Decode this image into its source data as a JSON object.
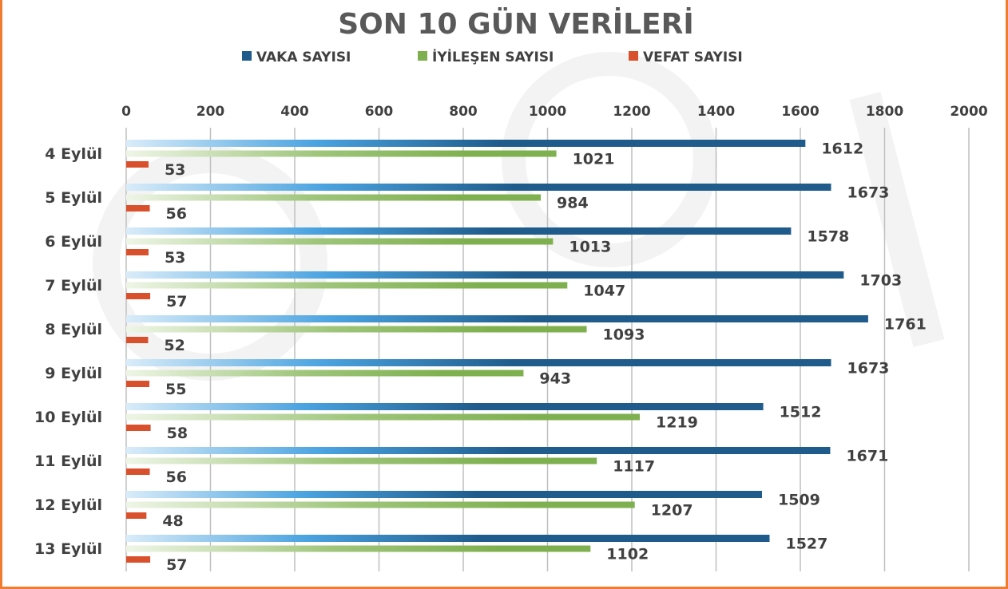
{
  "chart_data": {
    "type": "bar",
    "orientation": "horizontal",
    "title": "SON 10 GÜN VERİLERİ",
    "categories": [
      "4 Eylül",
      "5 Eylül",
      "6 Eylül",
      "7 Eylül",
      "8 Eylül",
      "9 Eylül",
      "10 Eylül",
      "11 Eylül",
      "12 Eylül",
      "13 Eylül"
    ],
    "series": [
      {
        "name": "VAKA SAYISI",
        "color": "#1f5c8c",
        "values": [
          1612,
          1673,
          1578,
          1703,
          1761,
          1673,
          1512,
          1671,
          1509,
          1527
        ]
      },
      {
        "name": "İYİLEŞEN SAYISI",
        "color": "#7fb04f",
        "values": [
          1021,
          984,
          1013,
          1047,
          1093,
          943,
          1219,
          1117,
          1207,
          1102
        ]
      },
      {
        "name": "VEFAT SAYISI",
        "color": "#d9512c",
        "values": [
          53,
          56,
          53,
          57,
          52,
          55,
          58,
          56,
          48,
          57
        ]
      }
    ],
    "xlim": [
      0,
      2000
    ],
    "xticks": [
      0,
      200,
      400,
      600,
      800,
      1000,
      1200,
      1400,
      1600,
      1800,
      2000
    ],
    "x_axis_position": "top",
    "grid": true,
    "legend_position": "top",
    "data_labels": true
  }
}
